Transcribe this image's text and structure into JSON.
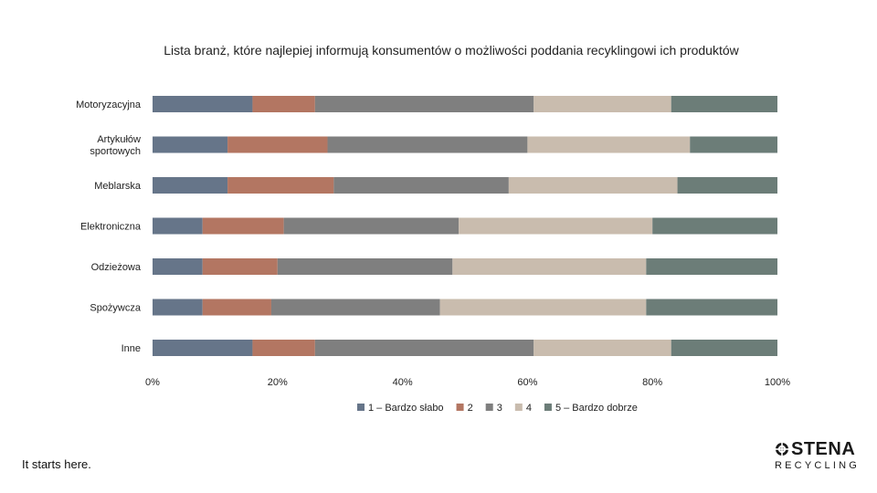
{
  "chart_data": {
    "type": "bar",
    "orientation": "horizontal",
    "stacked": true,
    "percent": true,
    "title": "Lista branż, które najlepiej informują konsumentów o możliwości poddania recyklingowi ich produktów",
    "categories": [
      [
        "Motoryzacyjna"
      ],
      [
        "Artykułów",
        "sportowych"
      ],
      [
        "Meblarska"
      ],
      [
        "Elektroniczna"
      ],
      [
        "Odzieżowa"
      ],
      [
        "Spożywcza"
      ],
      [
        "Inne"
      ]
    ],
    "series": [
      {
        "name": "1 – Bardzo słabo",
        "color": "#667589",
        "values": [
          16,
          12,
          12,
          8,
          8,
          8,
          16
        ]
      },
      {
        "name": "2",
        "color": "#b37662",
        "values": [
          10,
          16,
          17,
          13,
          12,
          11,
          10
        ]
      },
      {
        "name": "3",
        "color": "#7f7f7f",
        "values": [
          35,
          32,
          28,
          28,
          28,
          27,
          35
        ]
      },
      {
        "name": "4",
        "color": "#c9bcae",
        "values": [
          22,
          26,
          27,
          31,
          31,
          33,
          22
        ]
      },
      {
        "name": "5 – Bardzo dobrze",
        "color": "#6c7d78",
        "values": [
          17,
          14,
          16,
          20,
          21,
          21,
          17
        ]
      }
    ],
    "xlim": [
      0,
      100
    ],
    "xticks": [
      "0%",
      "20%",
      "40%",
      "60%",
      "80%",
      "100%"
    ],
    "legend_position": "bottom"
  },
  "footer": {
    "tagline": "It starts here.",
    "logo_name": "STENA",
    "logo_sub": "RECYCLING"
  }
}
